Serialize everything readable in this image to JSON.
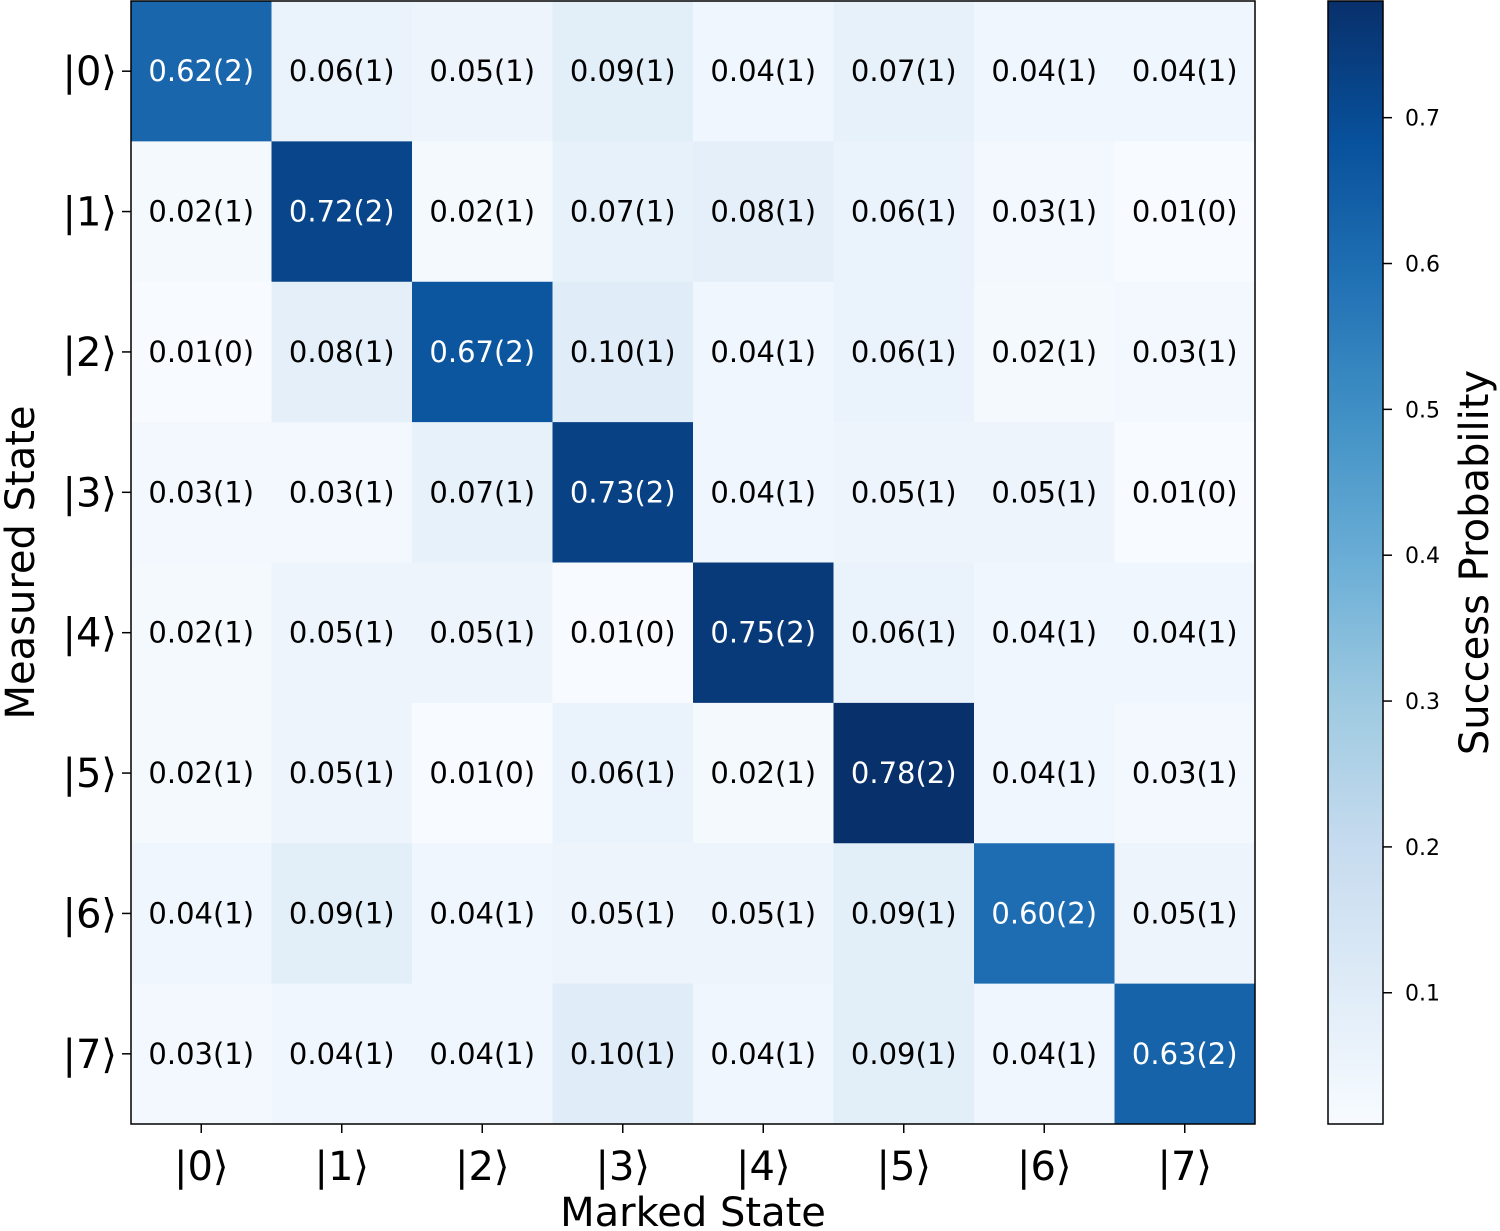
{
  "chart_data": {
    "type": "heatmap",
    "xlabel": "Marked State",
    "ylabel": "Measured State",
    "colorbar_label": "Success Probability",
    "x_tick_labels": [
      "|0⟩",
      "|1⟩",
      "|2⟩",
      "|3⟩",
      "|4⟩",
      "|5⟩",
      "|6⟩",
      "|7⟩"
    ],
    "y_tick_labels": [
      "|0⟩",
      "|1⟩",
      "|2⟩",
      "|3⟩",
      "|4⟩",
      "|5⟩",
      "|6⟩",
      "|7⟩"
    ],
    "values": [
      [
        0.62,
        0.06,
        0.05,
        0.09,
        0.04,
        0.07,
        0.04,
        0.04
      ],
      [
        0.02,
        0.72,
        0.02,
        0.07,
        0.08,
        0.06,
        0.03,
        0.01
      ],
      [
        0.01,
        0.08,
        0.67,
        0.1,
        0.04,
        0.06,
        0.02,
        0.03
      ],
      [
        0.03,
        0.03,
        0.07,
        0.73,
        0.04,
        0.05,
        0.05,
        0.01
      ],
      [
        0.02,
        0.05,
        0.05,
        0.01,
        0.75,
        0.06,
        0.04,
        0.04
      ],
      [
        0.02,
        0.05,
        0.01,
        0.06,
        0.02,
        0.78,
        0.04,
        0.03
      ],
      [
        0.04,
        0.09,
        0.04,
        0.05,
        0.05,
        0.09,
        0.6,
        0.05
      ],
      [
        0.03,
        0.04,
        0.04,
        0.1,
        0.04,
        0.09,
        0.04,
        0.63
      ]
    ],
    "cell_labels": [
      [
        "0.62(2)",
        "0.06(1)",
        "0.05(1)",
        "0.09(1)",
        "0.04(1)",
        "0.07(1)",
        "0.04(1)",
        "0.04(1)"
      ],
      [
        "0.02(1)",
        "0.72(2)",
        "0.02(1)",
        "0.07(1)",
        "0.08(1)",
        "0.06(1)",
        "0.03(1)",
        "0.01(0)"
      ],
      [
        "0.01(0)",
        "0.08(1)",
        "0.67(2)",
        "0.10(1)",
        "0.04(1)",
        "0.06(1)",
        "0.02(1)",
        "0.03(1)"
      ],
      [
        "0.03(1)",
        "0.03(1)",
        "0.07(1)",
        "0.73(2)",
        "0.04(1)",
        "0.05(1)",
        "0.05(1)",
        "0.01(0)"
      ],
      [
        "0.02(1)",
        "0.05(1)",
        "0.05(1)",
        "0.01(0)",
        "0.75(2)",
        "0.06(1)",
        "0.04(1)",
        "0.04(1)"
      ],
      [
        "0.02(1)",
        "0.05(1)",
        "0.01(0)",
        "0.06(1)",
        "0.02(1)",
        "0.78(2)",
        "0.04(1)",
        "0.03(1)"
      ],
      [
        "0.04(1)",
        "0.09(1)",
        "0.04(1)",
        "0.05(1)",
        "0.05(1)",
        "0.09(1)",
        "0.60(2)",
        "0.05(1)"
      ],
      [
        "0.03(1)",
        "0.04(1)",
        "0.04(1)",
        "0.10(1)",
        "0.04(1)",
        "0.09(1)",
        "0.04(1)",
        "0.63(2)"
      ]
    ],
    "colorbar": {
      "min": 0.01,
      "max": 0.78,
      "ticks": [
        0.1,
        0.2,
        0.3,
        0.4,
        0.5,
        0.6,
        0.7
      ],
      "tick_labels": [
        "0.1",
        "0.2",
        "0.3",
        "0.4",
        "0.5",
        "0.6",
        "0.7"
      ],
      "colormap": "Blues",
      "colormap_stops": [
        "#f7fbff",
        "#deebf7",
        "#c6dbef",
        "#9ecae1",
        "#6baed6",
        "#4292c6",
        "#2171b5",
        "#08519c",
        "#08306b"
      ]
    },
    "grid": false
  }
}
